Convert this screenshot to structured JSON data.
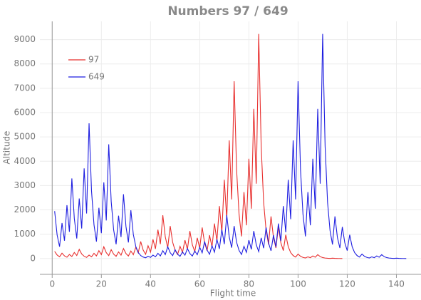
{
  "chart_data": {
    "type": "line",
    "title": "Numbers 97 / 649",
    "xlabel": "Flight time",
    "ylabel": "Altitude",
    "x": [
      1,
      2,
      3,
      4,
      5,
      6,
      7,
      8,
      9,
      10,
      11,
      12,
      13,
      14,
      15,
      16,
      17,
      18,
      19,
      20,
      21,
      22,
      23,
      24,
      25,
      26,
      27,
      28,
      29,
      30,
      31,
      32,
      33,
      34,
      35,
      36,
      37,
      38,
      39,
      40,
      41,
      42,
      43,
      44,
      45,
      46,
      47,
      48,
      49,
      50,
      51,
      52,
      53,
      54,
      55,
      56,
      57,
      58,
      59,
      60,
      61,
      62,
      63,
      64,
      65,
      66,
      67,
      68,
      69,
      70,
      71,
      72,
      73,
      74,
      75,
      76,
      77,
      78,
      79,
      80,
      81,
      82,
      83,
      84,
      85,
      86,
      87,
      88,
      89,
      90,
      91,
      92,
      93,
      94,
      95,
      96,
      97,
      98,
      99,
      100,
      101,
      102,
      103,
      104,
      105,
      106,
      107,
      108,
      109,
      110,
      111,
      112,
      113,
      114,
      115,
      116,
      117,
      118,
      119,
      120,
      121,
      122,
      123,
      124,
      125,
      126,
      127,
      128,
      129,
      130,
      131,
      132,
      133,
      134,
      135,
      136,
      137,
      138,
      139,
      140,
      141,
      142,
      143,
      144
    ],
    "series": [
      {
        "name": "97",
        "color": "#e8302f",
        "values": [
          292,
          146,
          73,
          220,
          110,
          55,
          166,
          83,
          250,
          125,
          376,
          188,
          94,
          47,
          142,
          71,
          214,
          107,
          322,
          161,
          484,
          242,
          121,
          364,
          182,
          91,
          274,
          137,
          412,
          206,
          103,
          310,
          155,
          466,
          233,
          700,
          350,
          175,
          526,
          263,
          790,
          395,
          1186,
          593,
          1780,
          890,
          445,
          1336,
          668,
          334,
          167,
          502,
          251,
          754,
          377,
          1132,
          566,
          283,
          850,
          425,
          1276,
          638,
          319,
          958,
          479,
          1438,
          719,
          2158,
          1079,
          3238,
          1619,
          4858,
          2429,
          7288,
          3644,
          1822,
          911,
          2734,
          1367,
          4102,
          2051,
          6154,
          3077,
          9232,
          4616,
          2308,
          1154,
          577,
          1732,
          866,
          433,
          1300,
          650,
          325,
          976,
          488,
          244,
          122,
          61,
          184,
          92,
          46,
          23,
          70,
          35,
          106,
          53,
          160,
          80,
          40,
          20,
          10,
          5,
          16,
          8,
          4,
          2,
          1,
          null,
          null,
          null,
          null,
          null,
          null,
          null,
          null,
          null,
          null,
          null,
          null,
          null,
          null,
          null,
          null,
          null,
          null,
          null,
          null,
          null,
          null,
          null,
          null,
          null,
          null
        ]
      },
      {
        "name": "649",
        "color": "#1f1fe0",
        "values": [
          1948,
          974,
          487,
          1462,
          731,
          2194,
          1097,
          3292,
          1646,
          823,
          2470,
          1235,
          3706,
          1853,
          5560,
          2780,
          1390,
          695,
          2086,
          1043,
          3130,
          1565,
          4696,
          2348,
          1174,
          587,
          1762,
          881,
          2644,
          1322,
          661,
          1984,
          992,
          496,
          248,
          124,
          62,
          31,
          94,
          47,
          142,
          71,
          214,
          107,
          322,
          161,
          484,
          242,
          121,
          364,
          182,
          91,
          274,
          137,
          412,
          206,
          103,
          310,
          155,
          466,
          233,
          700,
          350,
          175,
          526,
          263,
          790,
          395,
          1186,
          593,
          1780,
          890,
          445,
          1336,
          668,
          334,
          167,
          502,
          251,
          754,
          377,
          1132,
          566,
          283,
          850,
          425,
          1276,
          638,
          319,
          958,
          479,
          1438,
          719,
          2158,
          1079,
          3238,
          1619,
          4858,
          2429,
          7288,
          3644,
          1822,
          911,
          2734,
          1367,
          4102,
          2051,
          6154,
          3077,
          9232,
          4616,
          2308,
          1154,
          577,
          1732,
          866,
          433,
          1300,
          650,
          325,
          976,
          488,
          244,
          122,
          61,
          184,
          92,
          46,
          23,
          70,
          35,
          106,
          53,
          160,
          80,
          40,
          20,
          10,
          5,
          16,
          8,
          4,
          2,
          1
        ]
      }
    ],
    "xlim": [
      -5,
      150
    ],
    "ylim": [
      -650,
      9750
    ],
    "xticks": [
      0,
      20,
      40,
      60,
      80,
      100,
      120,
      140
    ],
    "yticks": [
      0,
      1000,
      2000,
      3000,
      4000,
      5000,
      6000,
      7000,
      8000,
      9000
    ],
    "grid": true,
    "legend": "upper left"
  }
}
